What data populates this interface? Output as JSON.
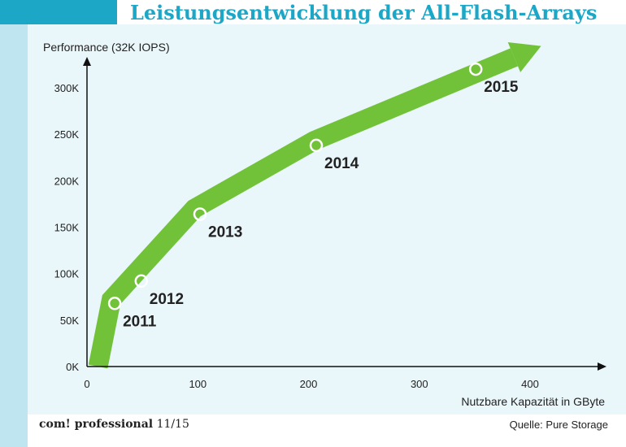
{
  "header": {
    "title": "Leistungsentwicklung der All-Flash-Arrays"
  },
  "footer": {
    "publication": "com! professional",
    "issue": "11/15",
    "source": "Quelle: Pure Storage"
  },
  "colors": {
    "accent": "#1da7c6",
    "arrow": "#72c239",
    "panel_bg": "#e9f6fa",
    "side_strip": "#bfe6f0"
  },
  "chart_data": {
    "type": "line",
    "title": "",
    "xlabel": "Nutzbare Kapazität in GByte",
    "ylabel": "Performance (32K IOPS)",
    "xlim": [
      0,
      460
    ],
    "ylim": [
      0,
      340000
    ],
    "x_ticks": [
      0,
      100,
      200,
      300,
      400
    ],
    "x_tick_labels": [
      "0",
      "100",
      "200",
      "300",
      "400"
    ],
    "y_ticks": [
      0,
      50000,
      100000,
      150000,
      200000,
      250000,
      300000
    ],
    "y_tick_labels": [
      "0K",
      "50K",
      "100K",
      "150K",
      "200K",
      "250K",
      "300K"
    ],
    "grid": false,
    "legend": "none",
    "arrow_path": [
      {
        "x": 10,
        "y": 0
      },
      {
        "x": 22,
        "y": 72000
      },
      {
        "x": 97,
        "y": 170000
      },
      {
        "x": 205,
        "y": 243000
      },
      {
        "x": 410,
        "y": 345000
      }
    ],
    "points": [
      {
        "label": "2011",
        "x": 25,
        "y": 68000
      },
      {
        "label": "2012",
        "x": 49,
        "y": 92000
      },
      {
        "label": "2013",
        "x": 102,
        "y": 164000
      },
      {
        "label": "2014",
        "x": 207,
        "y": 238000
      },
      {
        "label": "2015",
        "x": 351,
        "y": 320000
      }
    ]
  }
}
